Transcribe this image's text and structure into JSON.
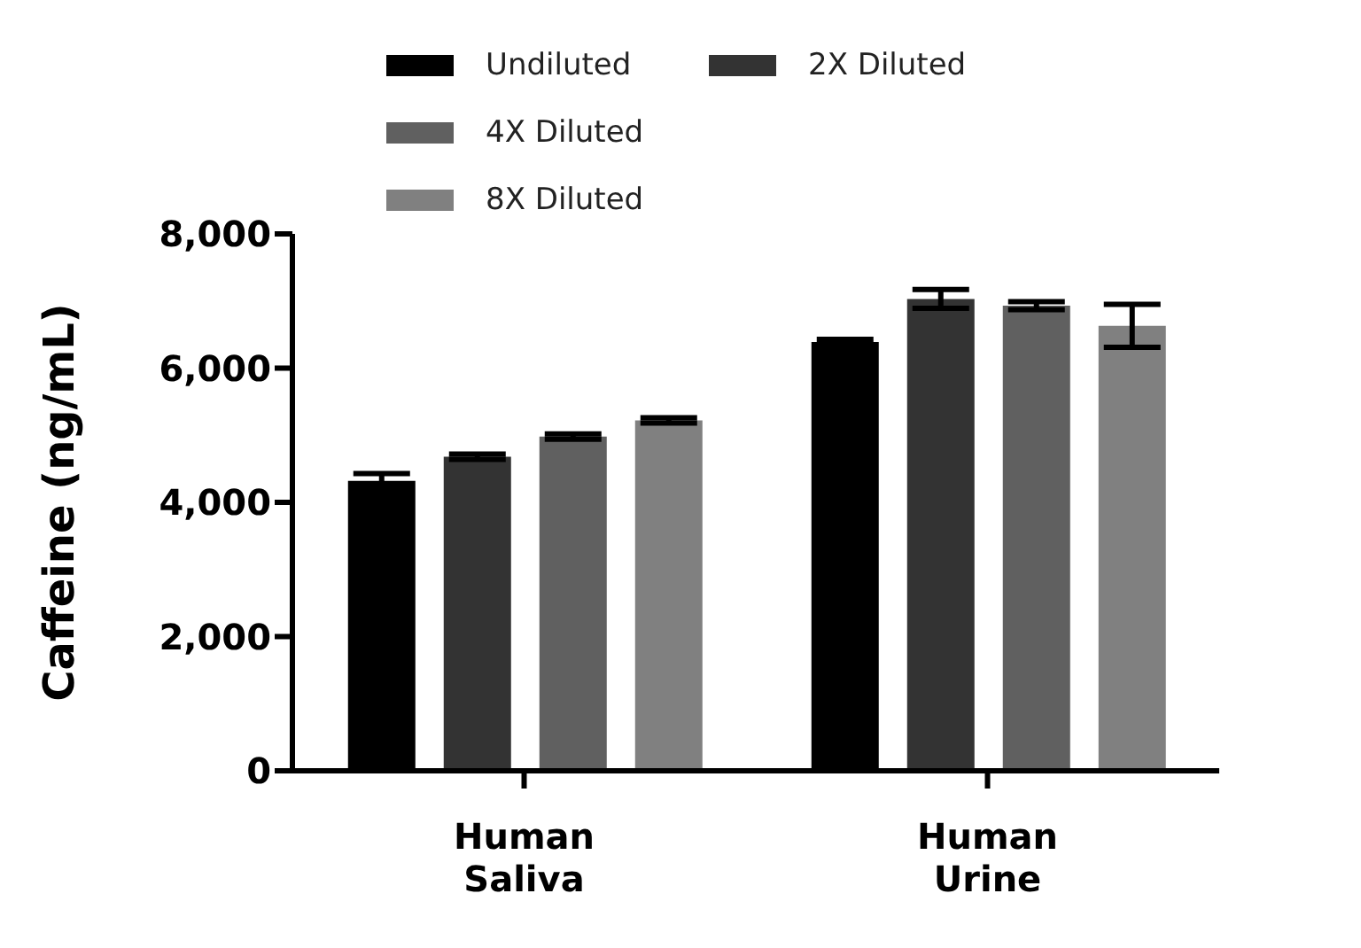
{
  "chart_data": {
    "type": "bar",
    "ylabel": "Caffeine (ng/mL)",
    "categories": [
      "Human Saliva",
      "Human Urine"
    ],
    "series": [
      {
        "name": "Undiluted",
        "color": "#000000",
        "values": [
          4320,
          6390
        ],
        "errors": [
          110,
          40
        ]
      },
      {
        "name": "2X Diluted",
        "color": "#333333",
        "values": [
          4680,
          7030
        ],
        "errors": [
          40,
          140
        ]
      },
      {
        "name": "4X Diluted",
        "color": "#606060",
        "values": [
          4980,
          6930
        ],
        "errors": [
          40,
          60
        ]
      },
      {
        "name": "8X Diluted",
        "color": "#808080",
        "values": [
          5220,
          6630
        ],
        "errors": [
          40,
          320
        ]
      }
    ],
    "ylim": [
      0,
      8000
    ],
    "yticks": [
      0,
      {
        "value": 2000,
        "label": "2,000"
      },
      {
        "value": 4000,
        "label": "4,000"
      },
      {
        "value": 6000,
        "label": "6,000"
      },
      {
        "value": 8000,
        "label": "8,000"
      }
    ],
    "grid": false,
    "legend": "top"
  }
}
